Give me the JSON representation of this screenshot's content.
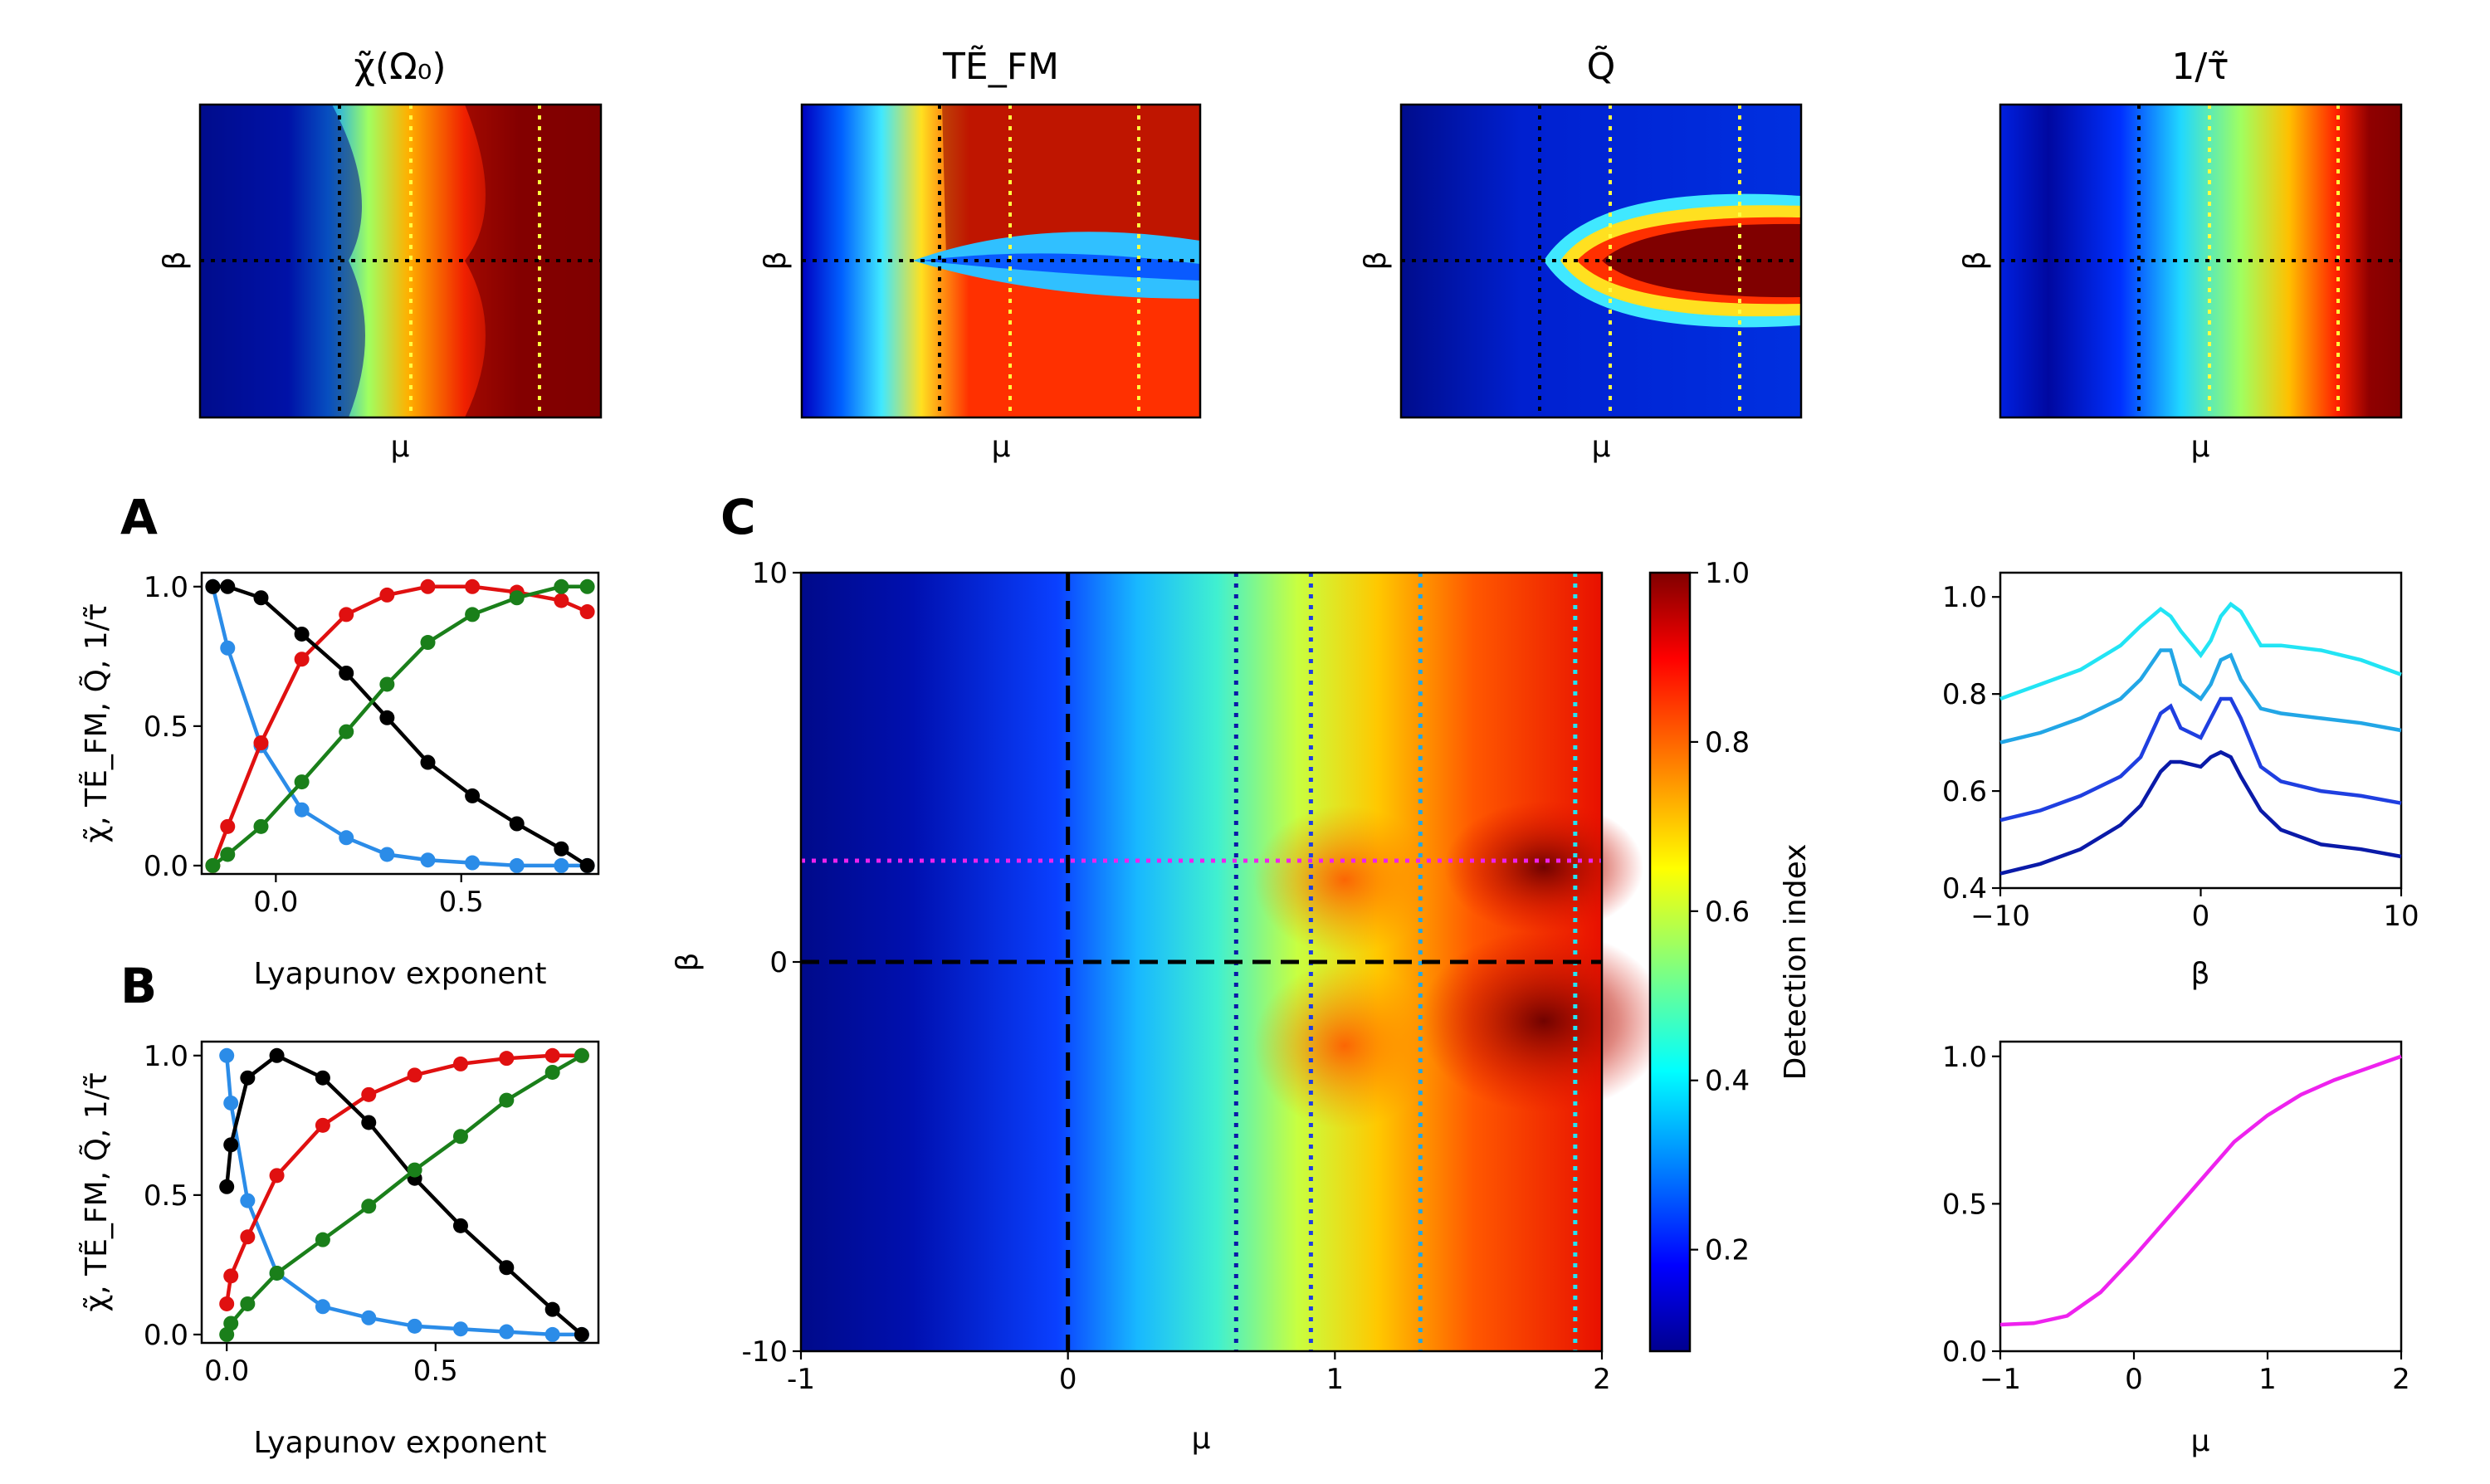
{
  "figure": {
    "heatmaps": [
      {
        "title": "χ̃(Ω₀)",
        "xlabel": "μ",
        "ylabel": "β"
      },
      {
        "title": "TẼ_FM",
        "xlabel": "μ",
        "ylabel": "β"
      },
      {
        "title": "Q̃",
        "xlabel": "μ",
        "ylabel": "β"
      },
      {
        "title": "1/τ̃",
        "xlabel": "μ",
        "ylabel": "β"
      }
    ],
    "panel_labels": [
      "A",
      "B",
      "C"
    ],
    "colorbar": {
      "label": "Detection index",
      "ticks": [
        "0.2",
        "0.4",
        "0.6",
        "0.8",
        "1.0"
      ]
    },
    "colors": {
      "chi": "#2b8ce8",
      "te": "#e01010",
      "q": "#000000",
      "tau": "#1a7f1a",
      "magenta": "#ee22ee",
      "dark_blue": "#0a1aa8",
      "blue": "#1f3fe0",
      "light_blue": "#22a6e6",
      "cyan": "#22e4f4"
    }
  },
  "chart_data": [
    {
      "type": "line",
      "panel": "A",
      "xlabel": "Lyapunov exponent",
      "ylabel": "χ̃, TẼ_FM, Q̃, 1/τ̃",
      "xlim": [
        -0.2,
        0.87
      ],
      "ylim": [
        -0.03,
        1.05
      ],
      "xticks": [
        "0.0",
        "0.5"
      ],
      "yticks": [
        "0.0",
        "0.5",
        "1.0"
      ],
      "series": [
        {
          "name": "χ̃",
          "color_key": "chi",
          "x": [
            -0.17,
            -0.13,
            -0.04,
            0.07,
            0.19,
            0.3,
            0.41,
            0.53,
            0.65,
            0.77,
            0.84
          ],
          "y": [
            1.0,
            0.78,
            0.43,
            0.2,
            0.1,
            0.04,
            0.02,
            0.01,
            0.0,
            0.0,
            0.0
          ]
        },
        {
          "name": "TẼ_FM",
          "color_key": "te",
          "x": [
            -0.17,
            -0.13,
            -0.04,
            0.07,
            0.19,
            0.3,
            0.41,
            0.53,
            0.65,
            0.77,
            0.84
          ],
          "y": [
            0.0,
            0.14,
            0.44,
            0.74,
            0.9,
            0.97,
            1.0,
            1.0,
            0.98,
            0.95,
            0.91
          ]
        },
        {
          "name": "Q̃",
          "color_key": "q",
          "x": [
            -0.17,
            -0.13,
            -0.04,
            0.07,
            0.19,
            0.3,
            0.41,
            0.53,
            0.65,
            0.77,
            0.84
          ],
          "y": [
            1.0,
            1.0,
            0.96,
            0.83,
            0.69,
            0.53,
            0.37,
            0.25,
            0.15,
            0.06,
            0.0
          ]
        },
        {
          "name": "1/τ̃",
          "color_key": "tau",
          "x": [
            -0.17,
            -0.13,
            -0.04,
            0.07,
            0.19,
            0.3,
            0.41,
            0.53,
            0.65,
            0.77,
            0.84
          ],
          "y": [
            0.0,
            0.04,
            0.14,
            0.3,
            0.48,
            0.65,
            0.8,
            0.9,
            0.96,
            1.0,
            1.0
          ]
        }
      ]
    },
    {
      "type": "line",
      "panel": "B",
      "xlabel": "Lyapunov exponent",
      "ylabel": "χ̃, TẼ_FM, Q̃, 1/τ̃",
      "xlim": [
        -0.06,
        0.89
      ],
      "ylim": [
        -0.03,
        1.05
      ],
      "xticks": [
        "0.0",
        "0.5"
      ],
      "yticks": [
        "0.0",
        "0.5",
        "1.0"
      ],
      "series": [
        {
          "name": "χ̃",
          "color_key": "chi",
          "x": [
            0.0,
            0.01,
            0.05,
            0.12,
            0.23,
            0.34,
            0.45,
            0.56,
            0.67,
            0.78,
            0.85
          ],
          "y": [
            1.0,
            0.83,
            0.48,
            0.22,
            0.1,
            0.06,
            0.03,
            0.02,
            0.01,
            0.0,
            0.0
          ]
        },
        {
          "name": "TẼ_FM",
          "color_key": "te",
          "x": [
            0.0,
            0.01,
            0.05,
            0.12,
            0.23,
            0.34,
            0.45,
            0.56,
            0.67,
            0.78,
            0.85
          ],
          "y": [
            0.11,
            0.21,
            0.35,
            0.57,
            0.75,
            0.86,
            0.93,
            0.97,
            0.99,
            1.0,
            1.0
          ]
        },
        {
          "name": "Q̃",
          "color_key": "q",
          "x": [
            0.0,
            0.01,
            0.05,
            0.12,
            0.23,
            0.34,
            0.45,
            0.56,
            0.67,
            0.78,
            0.85
          ],
          "y": [
            0.53,
            0.68,
            0.92,
            1.0,
            0.92,
            0.76,
            0.56,
            0.39,
            0.24,
            0.09,
            0.0
          ]
        },
        {
          "name": "1/τ̃",
          "color_key": "tau",
          "x": [
            0.0,
            0.01,
            0.05,
            0.12,
            0.23,
            0.34,
            0.45,
            0.56,
            0.67,
            0.78,
            0.85
          ],
          "y": [
            0.0,
            0.04,
            0.11,
            0.22,
            0.34,
            0.46,
            0.59,
            0.71,
            0.84,
            0.94,
            1.0
          ]
        }
      ]
    },
    {
      "type": "heatmap",
      "panel": "C",
      "xlabel": "μ",
      "ylabel": "β",
      "xlim": [
        -1,
        2
      ],
      "ylim": [
        -10,
        10
      ],
      "xticks": [
        "-1",
        "0",
        "1",
        "2"
      ],
      "yticks": [
        "-10",
        "0",
        "10"
      ],
      "colorbar_range": [
        0.08,
        1.0
      ],
      "dashed_lines": {
        "mu": 0,
        "beta": 0
      },
      "vertical_dotted_mu": [
        {
          "mu": 0.63,
          "color_key": "dark_blue"
        },
        {
          "mu": 0.91,
          "color_key": "blue"
        },
        {
          "mu": 1.32,
          "color_key": "light_blue"
        },
        {
          "mu": 1.9,
          "color_key": "cyan"
        }
      ],
      "horizontal_dotted_beta": {
        "beta": 2.6,
        "color_key": "magenta"
      }
    },
    {
      "type": "line",
      "panel": "beta-profiles",
      "xlabel": "β",
      "ylabel": "",
      "xlim": [
        -10,
        10
      ],
      "ylim": [
        0.4,
        1.05
      ],
      "xticks": [
        "−10",
        "0",
        "10"
      ],
      "yticks": [
        "0.4",
        "0.6",
        "0.8",
        "1.0"
      ],
      "series": [
        {
          "name": "μ=0.63",
          "color_key": "dark_blue",
          "x": [
            -10,
            -8,
            -6,
            -4,
            -3,
            -2,
            -1.5,
            -1,
            0,
            0.5,
            1,
            1.5,
            2,
            3,
            4,
            6,
            8,
            10
          ],
          "y": [
            0.43,
            0.45,
            0.48,
            0.53,
            0.57,
            0.64,
            0.66,
            0.66,
            0.65,
            0.67,
            0.68,
            0.67,
            0.63,
            0.56,
            0.52,
            0.49,
            0.48,
            0.465
          ]
        },
        {
          "name": "μ=0.91",
          "color_key": "blue",
          "x": [
            -10,
            -8,
            -6,
            -4,
            -3,
            -2,
            -1.5,
            -1,
            0,
            0.5,
            1,
            1.5,
            2,
            3,
            4,
            6,
            8,
            10
          ],
          "y": [
            0.54,
            0.56,
            0.59,
            0.63,
            0.67,
            0.76,
            0.775,
            0.73,
            0.71,
            0.75,
            0.79,
            0.79,
            0.75,
            0.65,
            0.62,
            0.6,
            0.59,
            0.575
          ]
        },
        {
          "name": "μ=1.32",
          "color_key": "light_blue",
          "x": [
            -10,
            -8,
            -6,
            -4,
            -3,
            -2,
            -1.5,
            -1,
            0,
            0.5,
            1,
            1.5,
            2,
            3,
            4,
            6,
            8,
            10
          ],
          "y": [
            0.7,
            0.72,
            0.75,
            0.79,
            0.83,
            0.89,
            0.89,
            0.82,
            0.79,
            0.82,
            0.87,
            0.88,
            0.83,
            0.77,
            0.76,
            0.75,
            0.74,
            0.725
          ]
        },
        {
          "name": "μ=1.9",
          "color_key": "cyan",
          "x": [
            -10,
            -8,
            -6,
            -4,
            -3,
            -2,
            -1.5,
            -1,
            0,
            0.5,
            1,
            1.5,
            2,
            3,
            4,
            6,
            8,
            10
          ],
          "y": [
            0.79,
            0.82,
            0.85,
            0.9,
            0.94,
            0.975,
            0.96,
            0.93,
            0.88,
            0.91,
            0.96,
            0.985,
            0.97,
            0.9,
            0.9,
            0.89,
            0.87,
            0.84
          ]
        }
      ]
    },
    {
      "type": "line",
      "panel": "mu-profile",
      "xlabel": "μ",
      "ylabel": "",
      "xlim": [
        -1,
        2
      ],
      "ylim": [
        0,
        1.05
      ],
      "xticks": [
        "−1",
        "0",
        "1",
        "2"
      ],
      "yticks": [
        "0.0",
        "0.5",
        "1.0"
      ],
      "series": [
        {
          "name": "β=2.6",
          "color_key": "magenta",
          "x": [
            -1,
            -0.75,
            -0.5,
            -0.25,
            0,
            0.25,
            0.5,
            0.75,
            1,
            1.25,
            1.5,
            1.75,
            2
          ],
          "y": [
            0.09,
            0.095,
            0.12,
            0.2,
            0.32,
            0.45,
            0.58,
            0.71,
            0.8,
            0.87,
            0.92,
            0.96,
            1.0
          ]
        }
      ]
    }
  ]
}
